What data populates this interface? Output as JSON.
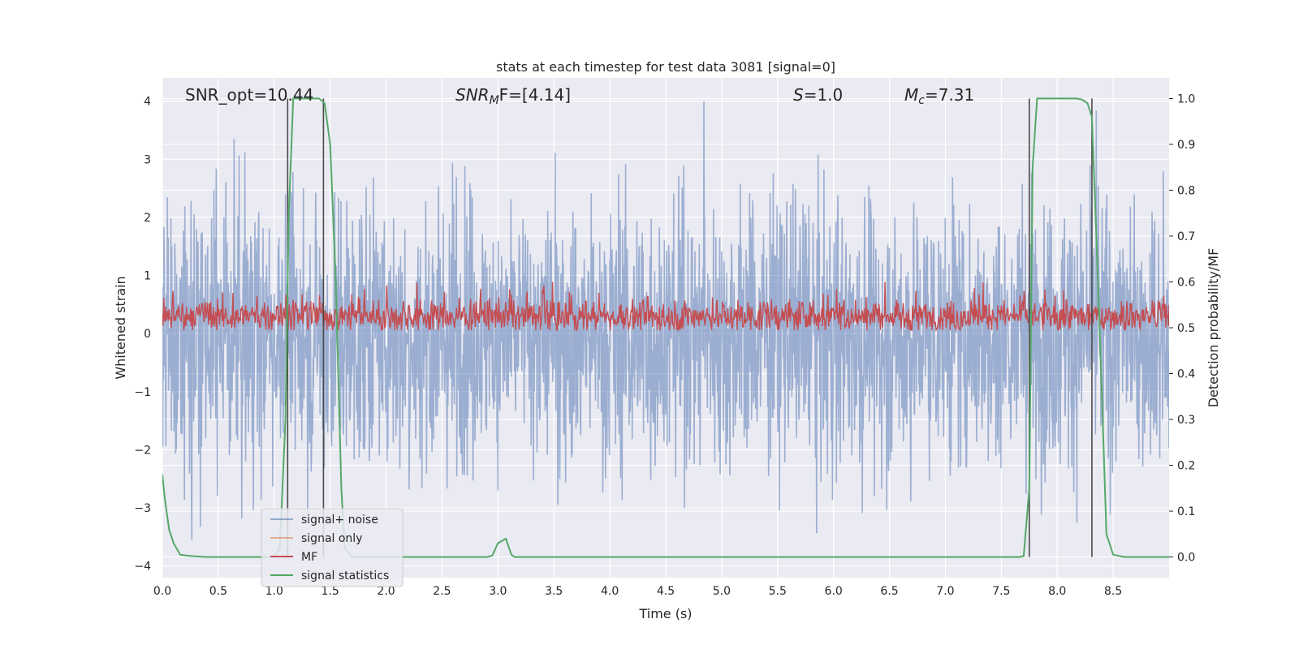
{
  "chart_data": {
    "type": "line",
    "title": "stats at each timestep for test data 3081 [signal=0]",
    "xlabel": "Time (s)",
    "ylabel": "Whitened strain",
    "ylabel_right": "Detection probability/MF",
    "xlim": [
      0.0,
      9.0
    ],
    "ylim": [
      -4.2,
      4.4
    ],
    "ylim_right": [
      -0.045,
      1.045
    ],
    "xticks": [
      "0.0",
      "0.5",
      "1.0",
      "1.5",
      "2.0",
      "2.5",
      "3.0",
      "3.5",
      "4.0",
      "4.5",
      "5.0",
      "5.5",
      "6.0",
      "6.5",
      "7.0",
      "7.5",
      "8.0",
      "8.5"
    ],
    "yticks": [
      "4",
      "3",
      "2",
      "1",
      "0",
      "−1",
      "−2",
      "−3",
      "−4"
    ],
    "yticks_right": [
      "1.0",
      "0.9",
      "0.8",
      "0.7",
      "0.6",
      "0.5",
      "0.4",
      "0.3",
      "0.2",
      "0.1",
      "0.0"
    ],
    "annotations": {
      "snr_opt": "SNR_opt=10.44",
      "snr_mf_sym": "SNR",
      "snr_mf_sub": "M",
      "snr_mf_rest": "F=[4.14]",
      "s_sym": "S",
      "s_rest": "=1.0",
      "mc_sym": "M",
      "mc_sub": "c",
      "mc_rest": "=7.31"
    },
    "legend": {
      "position": "lower-left",
      "entries": [
        "signal+ noise",
        "signal only",
        "MF",
        "signal statistics"
      ]
    },
    "vertical_lines": [
      1.12,
      1.44,
      7.75,
      8.31
    ],
    "series": [
      {
        "name": "signal+ noise",
        "color": "#4c72b0",
        "description": "dense noise between about -2.3 and 2.2, spikes to ±4"
      },
      {
        "name": "signal only",
        "color": "#dd8452",
        "values": "none visible"
      },
      {
        "name": "MF",
        "color": "#c44e52",
        "axis": "right",
        "description": "band between about 0.5 and 0.6"
      },
      {
        "name": "signal statistics",
        "color": "#55a868",
        "axis": "right",
        "x": [
          0.0,
          0.02,
          0.06,
          0.1,
          0.16,
          0.25,
          0.4,
          0.8,
          1.0,
          1.05,
          1.1,
          1.13,
          1.17,
          1.21,
          1.3,
          1.4,
          1.45,
          1.5,
          1.55,
          1.6,
          1.63,
          1.7,
          2.0,
          2.5,
          2.9,
          2.95,
          3.0,
          3.07,
          3.12,
          3.15,
          3.5,
          4.0,
          5.0,
          6.0,
          7.0,
          7.5,
          7.66,
          7.7,
          7.75,
          7.78,
          7.82,
          7.9,
          8.0,
          8.1,
          8.17,
          8.22,
          8.27,
          8.31,
          8.35,
          8.4,
          8.44,
          8.5,
          8.6,
          9.0
        ],
        "values": [
          0.18,
          0.13,
          0.06,
          0.03,
          0.005,
          0.002,
          0.0,
          0.0,
          0.0,
          0.02,
          0.3,
          0.75,
          1.0,
          1.0,
          1.0,
          1.0,
          0.99,
          0.9,
          0.6,
          0.15,
          0.02,
          0.0,
          0.0,
          0.0,
          0.0,
          0.003,
          0.03,
          0.04,
          0.005,
          0.0,
          0.0,
          0.0,
          0.0,
          0.0,
          0.0,
          0.0,
          0.0,
          0.002,
          0.15,
          0.85,
          1.0,
          1.0,
          1.0,
          1.0,
          1.0,
          0.998,
          0.99,
          0.96,
          0.7,
          0.35,
          0.05,
          0.005,
          0.0,
          0.0
        ]
      }
    ]
  }
}
